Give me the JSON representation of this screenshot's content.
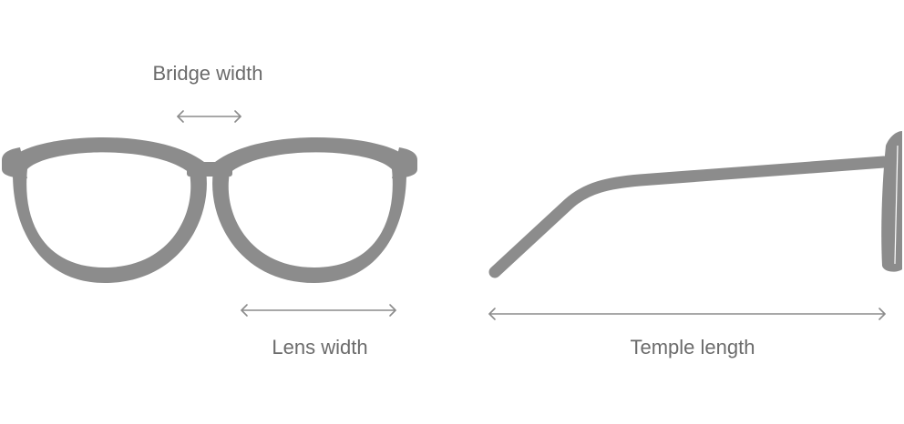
{
  "labels": {
    "bridge_width": "Bridge width",
    "lens_width": "Lens width",
    "temple_length": "Temple length"
  }
}
